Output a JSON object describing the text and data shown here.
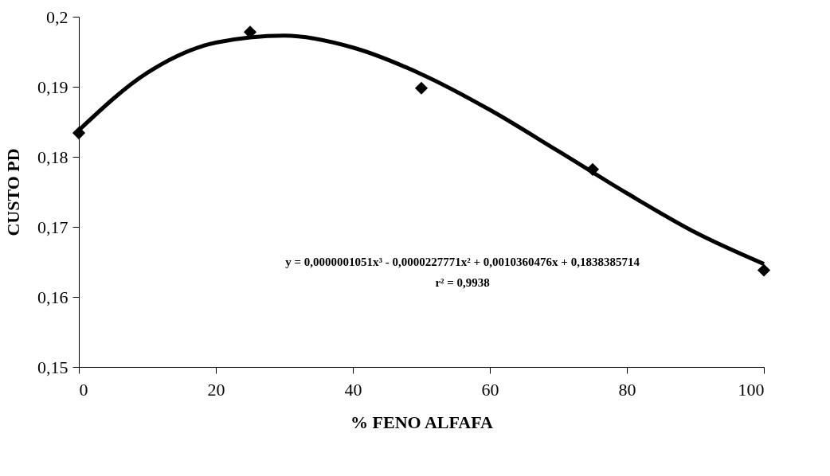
{
  "chart_data": {
    "type": "scatter",
    "xlabel": "% FENO ALFAFA",
    "ylabel": "CUSTO PD",
    "x": [
      0,
      25,
      50,
      75,
      100
    ],
    "series": [
      {
        "color": "#000000",
        "marker": "diamond",
        "values": [
          0.1834,
          0.1978,
          0.1898,
          0.1782,
          0.1638
        ]
      },
      {
        "type": "line",
        "color": "#000000",
        "marker": "none",
        "line_style": "solid",
        "x": [
          0,
          10,
          20,
          30,
          40,
          50,
          60,
          70,
          80,
          90,
          100
        ],
        "values": [
          0.1838,
          0.192,
          0.1963,
          0.1973,
          0.1956,
          0.1918,
          0.1867,
          0.1808,
          0.1748,
          0.1692,
          0.1647
        ]
      }
    ],
    "xlim": [
      0,
      100
    ],
    "xticks": [
      0,
      20,
      40,
      60,
      80,
      100
    ],
    "ylim": [
      0.15,
      0.2
    ],
    "yticks": [
      {
        "value": 0.15,
        "label": "0,15"
      },
      {
        "value": 0.16,
        "label": "0,16"
      },
      {
        "value": 0.17,
        "label": "0,17"
      },
      {
        "value": 0.18,
        "label": "0,18"
      },
      {
        "value": 0.19,
        "label": "0,19"
      },
      {
        "value": 0.2,
        "label": "0,2"
      }
    ],
    "grid": false,
    "annotations": [
      "y = 0,0000001051x³ - 0,0000227771x² + 0,0010360476x + 0,1838385714",
      "r² = 0,9938"
    ]
  }
}
